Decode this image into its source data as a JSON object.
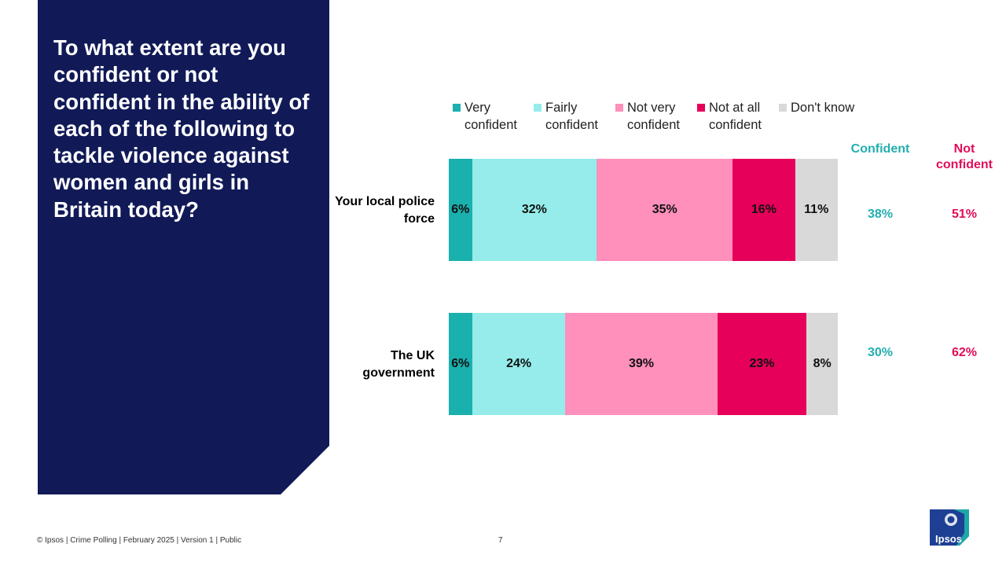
{
  "question": "To what extent are you confident or not confident in the ability of each of the following to tackle violence against women and girls in Britain today?",
  "net_headers": {
    "confident": "Confident",
    "not_confident": "Not confident"
  },
  "colors": {
    "very_confident": "#1ab0ae",
    "fairly_confident": "#95ecea",
    "not_very_confident": "#ff8fbb",
    "not_at_all_confident": "#e6005a",
    "dont_know": "#d9d9d9",
    "panel": "#111a57",
    "confident_text": "#23aeae",
    "not_confident_text": "#e20d5a"
  },
  "footer": {
    "text": "© Ipsos | Crime Polling | February 2025 | Version 1 | Public",
    "page_number": "7",
    "logo_text": "Ipsos"
  },
  "chart_data": {
    "type": "bar",
    "orientation": "horizontal",
    "stacked": true,
    "categories": [
      "Your local police force",
      "The UK government"
    ],
    "series": [
      {
        "name": "Very confident",
        "values": [
          6,
          6
        ],
        "color": "#1ab0ae"
      },
      {
        "name": "Fairly confident",
        "values": [
          32,
          24
        ],
        "color": "#95ecea"
      },
      {
        "name": "Not very confident",
        "values": [
          35,
          39
        ],
        "color": "#ff8fbb"
      },
      {
        "name": "Not at all confident",
        "values": [
          16,
          23
        ],
        "color": "#e6005a"
      },
      {
        "name": "Don't know",
        "values": [
          11,
          8
        ],
        "color": "#d9d9d9"
      }
    ],
    "net": {
      "Confident": [
        38,
        30
      ],
      "Not confident": [
        51,
        62
      ]
    },
    "value_suffix": "%",
    "legend_position": "top",
    "xlim": [
      0,
      100
    ]
  }
}
